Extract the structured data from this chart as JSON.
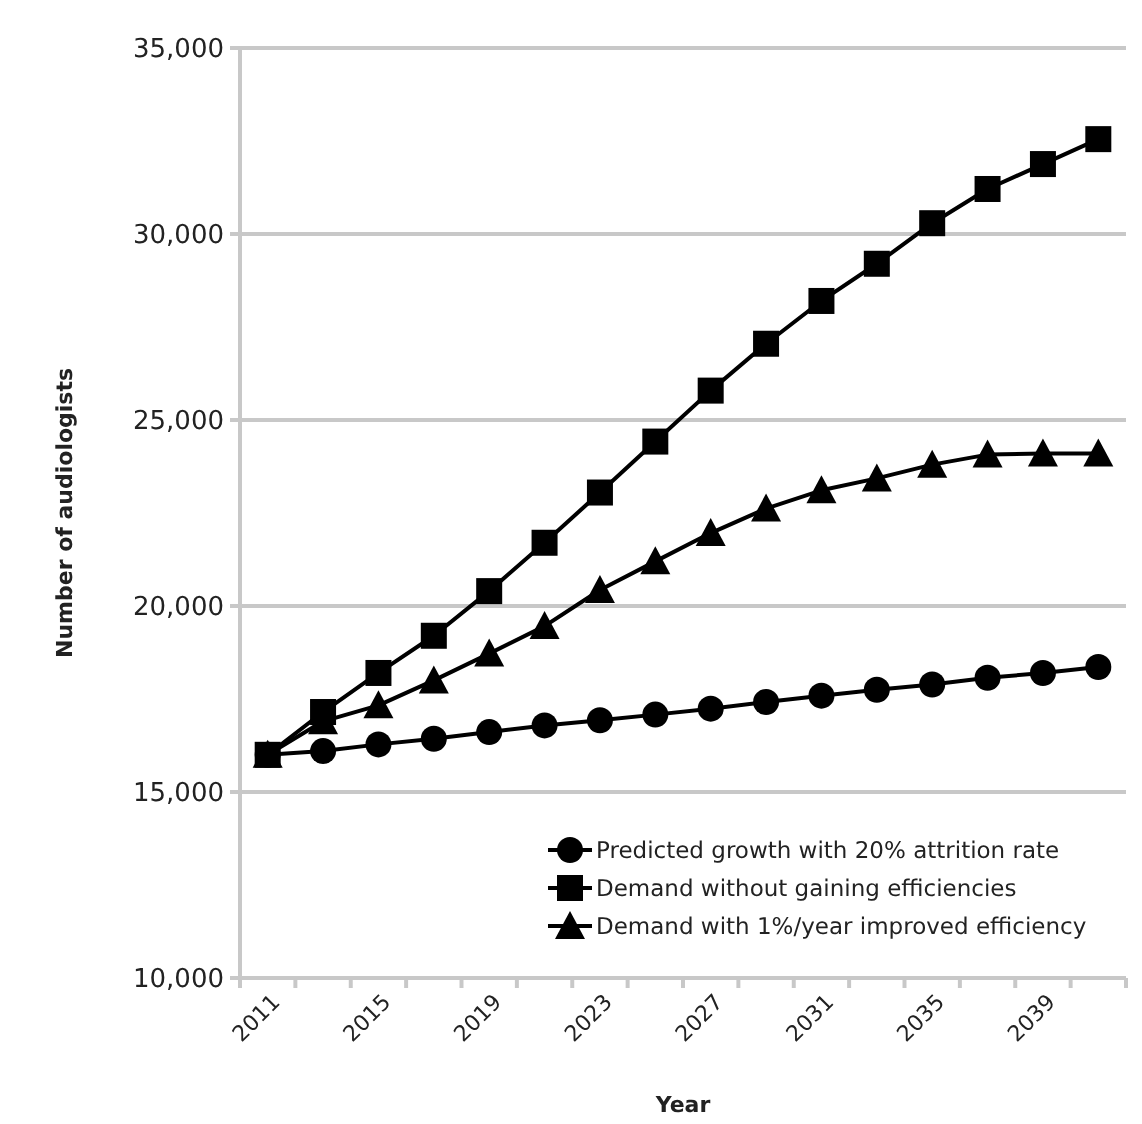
{
  "chart_data": {
    "type": "line",
    "xlabel": "Year",
    "ylabel": "Number of audiologists",
    "categories": [
      "2011",
      null,
      "2015",
      null,
      "2019",
      null,
      "2023",
      null,
      "2027",
      null,
      "2031",
      null,
      "2035",
      null,
      "2039",
      null
    ],
    "series": [
      {
        "name": "Predicted growth with 20% attrition rate",
        "color": "#000000",
        "marker": "circle",
        "values": [
          16000,
          16100,
          16280,
          16430,
          16610,
          16790,
          16930,
          17080,
          17240,
          17420,
          17590,
          17750,
          17890,
          18070,
          18200,
          18360
        ]
      },
      {
        "name": "Demand without gaining efficiencies",
        "color": "#000000",
        "marker": "square",
        "values": [
          16000,
          17150,
          18200,
          19200,
          20400,
          21700,
          23050,
          24420,
          25790,
          27050,
          28200,
          29200,
          30290,
          31210,
          31880,
          32550
        ]
      },
      {
        "name": "Demand with 1%/year improved efficiency",
        "color": "#000000",
        "marker": "triangle",
        "values": [
          16000,
          16900,
          17330,
          18000,
          18720,
          19460,
          20430,
          21200,
          21960,
          22620,
          23110,
          23430,
          23800,
          24070,
          24100,
          24100
        ]
      }
    ],
    "ylim": [
      10000,
      35000
    ],
    "yticks": [
      {
        "value": 10000,
        "label": "10,000"
      },
      {
        "value": 15000,
        "label": "15,000"
      },
      {
        "value": 20000,
        "label": "20,000"
      },
      {
        "value": 25000,
        "label": "25,000"
      },
      {
        "value": 30000,
        "label": "30,000"
      },
      {
        "value": 35000,
        "label": "35,000"
      }
    ],
    "grid": "y",
    "legend": "bottom right",
    "line_style": "solid"
  }
}
